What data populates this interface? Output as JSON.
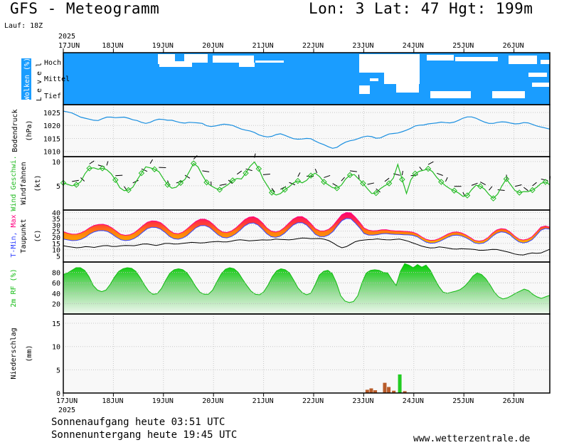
{
  "header": {
    "title": "GFS - Meteogramm",
    "coords": "Lon: 3 Lat: 47 Hgt: 199m",
    "run": "Lauf: 18Z"
  },
  "footer": {
    "sunrise": "Sonnenaufgang heute 03:51 UTC",
    "sunset": "Sonnenuntergang heute 19:45 UTC",
    "credit": "www.wetterzentrale.de"
  },
  "colors": {
    "cloud_bg": "#1a9dff",
    "pressure": "#1a8fe0",
    "wind": "#22bb22",
    "tmax": "#ff0080",
    "tmin": "#3344ff",
    "dewpoint": "#000000",
    "rh": "#11bb11",
    "rain": "#b85c2a",
    "rain_heavy": "#22cc22"
  },
  "chart_data": {
    "type": "line",
    "year": "2025",
    "x_dates": [
      "17JUN",
      "18JUN",
      "19JUN",
      "20JUN",
      "21JUN",
      "22JUN",
      "23JUN",
      "24JUN",
      "25JUN",
      "26JUN"
    ],
    "panels": {
      "clouds": {
        "ylabel": "Wolken (%)",
        "ylabel2": "L e v e l",
        "levels": [
          "Hoch",
          "Mittel",
          "Tief"
        ]
      },
      "pressure": {
        "ylabel": "Bodendruck",
        "unit": "(hPa)",
        "ylim": [
          1008,
          1028
        ],
        "ticks": [
          1010,
          1015,
          1020,
          1025
        ],
        "series": [
          {
            "values": [
              1025.5,
              1025.2,
              1024.8,
              1024.0,
              1023.2,
              1022.8,
              1022.4,
              1022.0,
              1021.9,
              1022.6,
              1023.2,
              1023.2,
              1023.0,
              1023.1,
              1023.2,
              1022.8,
              1022.2,
              1021.9,
              1021.2,
              1020.8,
              1021.2,
              1022.0,
              1022.4,
              1022.3,
              1022.0,
              1022.0,
              1021.5,
              1021.1,
              1020.9,
              1021.2,
              1021.1,
              1021.0,
              1020.8,
              1019.9,
              1019.6,
              1019.8,
              1020.2,
              1020.5,
              1020.3,
              1020.0,
              1019.3,
              1018.6,
              1018.2,
              1017.9,
              1017.3,
              1016.4,
              1015.9,
              1015.6,
              1015.8,
              1016.5,
              1016.8,
              1016.2,
              1015.5,
              1014.9,
              1014.7,
              1014.8,
              1015.0,
              1014.9,
              1014.0,
              1013.2,
              1012.6,
              1011.8,
              1011.2,
              1011.6,
              1012.7,
              1013.6,
              1014.1,
              1014.4,
              1015.0,
              1015.6,
              1015.9,
              1015.7,
              1015.1,
              1015.2,
              1016.0,
              1016.7,
              1016.9,
              1017.1,
              1017.6,
              1018.2,
              1018.9,
              1019.8,
              1020.1,
              1020.2,
              1020.6,
              1020.8,
              1021.0,
              1021.3,
              1021.1,
              1021.0,
              1021.3,
              1022.0,
              1022.8,
              1023.3,
              1023.3,
              1022.8,
              1022.0,
              1021.3,
              1020.8,
              1020.8,
              1021.2,
              1021.4,
              1021.3,
              1020.9,
              1020.6,
              1020.7,
              1021.1,
              1021.0,
              1020.4,
              1019.8,
              1019.4,
              1019.0,
              1018.6
            ]
          }
        ]
      },
      "wind": {
        "ylabel": "Wind Geschwi.",
        "ylabel2": "Windfahnen",
        "unit": "(kt)",
        "ylim": [
          0,
          11
        ],
        "ticks": [
          5,
          10
        ],
        "series": [
          {
            "values": [
              5.6,
              5.3,
              5.0,
              5.2,
              5.8,
              7.5,
              8.6,
              8.7,
              8.4,
              8.6,
              8.3,
              7.5,
              6.2,
              4.6,
              4.0,
              4.1,
              4.7,
              6.2,
              7.6,
              8.9,
              8.7,
              8.4,
              7.9,
              6.5,
              5.2,
              4.5,
              4.7,
              5.6,
              6.3,
              7.9,
              9.6,
              8.9,
              7.2,
              5.7,
              5.0,
              4.5,
              4.2,
              4.7,
              5.3,
              6.1,
              6.5,
              6.4,
              7.6,
              9.0,
              9.9,
              8.5,
              6.4,
              5.0,
              3.6,
              3.1,
              3.4,
              4.2,
              4.8,
              5.6,
              6.0,
              5.6,
              6.1,
              7.1,
              7.6,
              6.9,
              5.8,
              5.2,
              4.6,
              4.5,
              5.1,
              6.4,
              7.2,
              7.3,
              6.4,
              5.5,
              4.4,
              3.4,
              3.5,
              4.4,
              5.0,
              5.5,
              6.6,
              9.4,
              6.3,
              3.4,
              6.2,
              7.5,
              8.0,
              8.2,
              8.5,
              7.9,
              6.7,
              5.8,
              5.0,
              4.4,
              4.0,
              3.5,
              2.8,
              3.0,
              4.2,
              5.1,
              4.9,
              4.3,
              3.2,
              2.4,
              3.3,
              5.0,
              6.4,
              5.2,
              4.0,
              3.6,
              3.8,
              3.8,
              4.1,
              4.7,
              5.5,
              5.8,
              5.2
            ]
          }
        ]
      },
      "temperature": {
        "ylabel": "T-Min, Max",
        "ylabel2": "Taupunkt",
        "unit": "(C)",
        "ylim": [
          0,
          42
        ],
        "ticks": [
          5,
          10,
          15,
          20,
          25,
          30,
          35,
          40
        ],
        "series": [
          {
            "name": "T-Min",
            "values": [
              18.6,
              17.9,
              17.3,
              17.5,
              18.3,
              20.1,
              22.6,
              24.4,
              25.3,
              25.5,
              24.7,
              22.6,
              20.1,
              18.0,
              17.3,
              17.7,
              18.9,
              21.2,
              24.2,
              26.9,
              28.1,
              27.9,
              26.6,
              24.0,
              20.7,
              18.8,
              18.4,
              19.4,
              21.4,
              24.6,
              27.7,
              29.4,
              29.5,
              28.0,
              25.1,
              21.9,
              19.9,
              19.5,
              20.6,
              22.7,
              25.7,
              29.1,
              31.2,
              31.6,
              30.0,
              26.7,
              22.9,
              20.5,
              19.9,
              20.8,
              23.2,
              26.6,
              29.9,
              31.7,
              31.8,
              29.9,
              26.3,
              22.3,
              20.6,
              20.5,
              21.8,
              24.7,
              29.2,
              33.4,
              35.2,
              34.9,
              31.6,
              27.6,
              23.1,
              21.8,
              21.7,
              22.1,
              22.8,
              23.0,
              22.6,
              22.4,
              22.3,
              22.0,
              21.9,
              21.6,
              20.4,
              18.1,
              16.1,
              15.2,
              15.4,
              16.5,
              18.3,
              20.1,
              21.4,
              21.7,
              21.1,
              19.7,
              17.7,
              15.4,
              14.8,
              15.3,
              17.3,
              20.7,
              23.2,
              24.4,
              23.9,
              22.0,
              18.8,
              16.3,
              15.4,
              16.1,
              18.0,
              21.7,
              25.8,
              27.1,
              26.6
            ]
          },
          {
            "name": "Max",
            "values": [
              24.5,
              23.3,
              22.5,
              22.6,
              23.6,
              25.4,
              27.8,
              29.6,
              30.4,
              30.5,
              29.6,
              27.6,
              24.9,
              22.4,
              21.6,
              22.0,
              23.6,
              26.3,
              29.4,
              32.1,
              33.2,
              33.0,
              31.8,
              29.0,
              25.6,
              23.3,
              22.9,
              24.1,
              26.8,
              30.0,
              32.9,
              34.6,
              34.6,
              33.1,
              30.1,
              26.6,
              24.3,
              23.9,
              25.0,
              27.5,
              30.8,
              34.2,
              36.2,
              36.6,
              35.0,
              31.7,
              27.6,
              25.0,
              24.3,
              25.2,
              27.9,
              31.4,
              34.7,
              36.6,
              36.7,
              34.6,
              31.0,
              26.9,
              25.2,
              25.1,
              26.4,
              29.5,
              34.0,
              38.3,
              40.0,
              39.7,
              36.3,
              32.3,
              27.5,
              25.8,
              25.2,
              25.4,
              26.0,
              26.1,
              25.5,
              25.2,
              25.1,
              24.8,
              24.6,
              24.1,
              22.8,
              20.4,
              18.4,
              17.5,
              17.7,
              18.9,
              20.8,
              22.7,
              24.0,
              24.3,
              23.6,
              22.0,
              19.8,
              17.5,
              16.9,
              17.5,
              19.7,
              23.3,
              25.9,
              27.0,
              26.5,
              24.4,
              21.1,
              18.6,
              17.8,
              18.5,
              20.5,
              24.3,
              28.2,
              29.1,
              28.2
            ]
          },
          {
            "name": "Taupunkt",
            "values": [
              13.2,
              12.5,
              12.0,
              11.5,
              11.8,
              12.4,
              12.2,
              11.8,
              12.5,
              13.2,
              13.3,
              12.6,
              12.6,
              13.1,
              13.4,
              13.3,
              13.2,
              13.8,
              14.5,
              14.6,
              14.0,
              13.4,
              14.1,
              15.0,
              15.0,
              14.5,
              14.6,
              15.1,
              15.5,
              15.9,
              15.7,
              15.4,
              15.6,
              16.1,
              16.4,
              16.6,
              16.3,
              16.3,
              16.8,
              17.6,
              18.0,
              17.6,
              17.1,
              17.3,
              17.6,
              17.9,
              17.8,
              17.9,
              18.5,
              18.3,
              18.1,
              17.9,
              18.3,
              18.8,
              19.4,
              19.3,
              18.8,
              18.9,
              19.0,
              18.4,
              17.3,
              15.4,
              13.1,
              11.5,
              12.4,
              14.4,
              16.4,
              17.3,
              17.8,
              18.1,
              18.3,
              18.7,
              18.3,
              18.0,
              17.9,
              18.3,
              18.6,
              17.8,
              16.8,
              15.5,
              14.2,
              12.9,
              12.0,
              11.4,
              11.5,
              12.2,
              11.8,
              11.2,
              10.6,
              10.4,
              10.8,
              10.6,
              10.4,
              10.1,
              9.5,
              9.5,
              9.8,
              10.2,
              10.1,
              9.4,
              8.6,
              7.7,
              6.5,
              5.9,
              5.7,
              6.6,
              7.3,
              7.0,
              7.3,
              8.8,
              10.3
            ]
          }
        ]
      },
      "humidity": {
        "ylabel": "2m RF (%)",
        "ylim": [
          0,
          100
        ],
        "ticks": [
          20,
          40,
          60,
          80
        ],
        "series": [
          {
            "values": [
              76,
              79,
              84,
              89,
              89,
              84,
              72,
              55,
              46,
              43,
              46,
              57,
              71,
              82,
              87,
              89,
              88,
              82,
              70,
              56,
              44,
              38,
              39,
              49,
              65,
              79,
              85,
              87,
              85,
              79,
              67,
              53,
              42,
              38,
              38,
              46,
              62,
              77,
              86,
              89,
              87,
              80,
              67,
              55,
              44,
              38,
              37,
              43,
              56,
              72,
              83,
              87,
              85,
              79,
              65,
              50,
              41,
              37,
              40,
              56,
              75,
              82,
              84,
              78,
              60,
              35,
              25,
              22,
              24,
              35,
              60,
              79,
              84,
              85,
              84,
              80,
              79,
              66,
              55,
              82,
              97,
              94,
              89,
              95,
              90,
              94,
              84,
              68,
              53,
              42,
              40,
              42,
              44,
              47,
              53,
              62,
              73,
              79,
              76,
              68,
              56,
              42,
              33,
              29,
              31,
              35,
              40,
              44,
              48,
              45,
              38,
              33,
              30,
              33,
              36
            ]
          }
        ]
      },
      "precipitation": {
        "ylabel": "Niederschlag",
        "unit": "(mm)",
        "ylim": [
          0,
          17
        ],
        "ticks": [
          0,
          5,
          10,
          15
        ],
        "bars": [
          {
            "x": 6.07,
            "value": 0.7
          },
          {
            "x": 6.15,
            "value": 1.0
          },
          {
            "x": 6.23,
            "value": 0.6
          },
          {
            "x": 6.42,
            "value": 2.2
          },
          {
            "x": 6.5,
            "value": 1.3
          },
          {
            "x": 6.6,
            "value": 0.5
          },
          {
            "x": 6.72,
            "value": 4.0
          },
          {
            "x": 6.82,
            "value": 0.4
          }
        ]
      }
    }
  }
}
